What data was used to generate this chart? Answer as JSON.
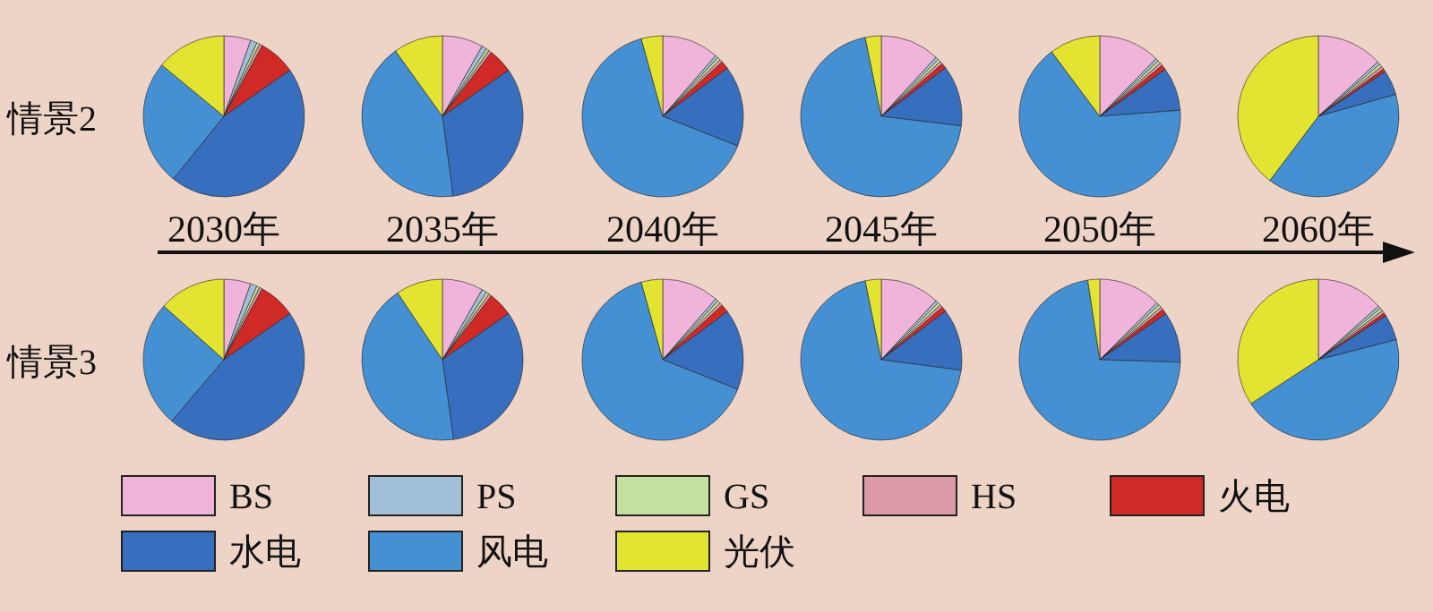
{
  "chart_data": [
    {
      "type": "pie",
      "title": "2030年",
      "ylabel": "情景2",
      "categories": [
        null,
        null,
        null,
        null,
        null,
        null,
        null,
        null
      ],
      "values": [
        5.4,
        1.3,
        0.6,
        0.6,
        7.4,
        45.5,
        25.2,
        14.0
      ],
      "colors": [
        "#f0b4da",
        "#a2bfd8",
        "#c3e09e",
        "#dc9aa6",
        "#d02a26",
        "#386ebe",
        "#4490d2",
        "#e3e332"
      ]
    },
    {
      "type": "pie",
      "title": "2035年",
      "categories": [
        null,
        null,
        null,
        null,
        null,
        null,
        null,
        null
      ],
      "values": [
        8.2,
        1.0,
        0.6,
        0.6,
        4.9,
        32.6,
        42.2,
        9.9
      ],
      "colors": [
        "#f0b4da",
        "#a2bfd8",
        "#c3e09e",
        "#dc9aa6",
        "#d02a26",
        "#386ebe",
        "#4490d2",
        "#e3e332"
      ]
    },
    {
      "type": "pie",
      "title": "2040年",
      "categories": [
        null,
        null,
        null,
        null,
        null,
        null,
        null,
        null
      ],
      "values": [
        11.4,
        0.6,
        0.6,
        0.6,
        1.6,
        16.2,
        64.7,
        4.3
      ],
      "colors": [
        "#f0b4da",
        "#a2bfd8",
        "#c3e09e",
        "#dc9aa6",
        "#d02a26",
        "#386ebe",
        "#4490d2",
        "#e3e332"
      ]
    },
    {
      "type": "pie",
      "title": "2045年",
      "categories": [
        null,
        null,
        null,
        null,
        null,
        null,
        null,
        null
      ],
      "values": [
        11.9,
        0.6,
        0.6,
        0.6,
        1.0,
        12.2,
        69.9,
        3.2
      ],
      "colors": [
        "#f0b4da",
        "#a2bfd8",
        "#c3e09e",
        "#dc9aa6",
        "#d02a26",
        "#386ebe",
        "#4490d2",
        "#e3e332"
      ]
    },
    {
      "type": "pie",
      "title": "2050年",
      "categories": [
        null,
        null,
        null,
        null,
        null,
        null,
        null,
        null
      ],
      "values": [
        12.3,
        0.6,
        0.6,
        0.6,
        1.0,
        8.7,
        66.0,
        10.2
      ],
      "colors": [
        "#f0b4da",
        "#a2bfd8",
        "#c3e09e",
        "#dc9aa6",
        "#d02a26",
        "#386ebe",
        "#4490d2",
        "#e3e332"
      ]
    },
    {
      "type": "pie",
      "title": "2060年",
      "categories": [
        null,
        null,
        null,
        null,
        null,
        null,
        null,
        null
      ],
      "values": [
        13.2,
        0.6,
        0.6,
        0.6,
        0.6,
        5.0,
        39.7,
        39.7
      ],
      "colors": [
        "#f0b4da",
        "#a2bfd8",
        "#c3e09e",
        "#dc9aa6",
        "#d02a26",
        "#386ebe",
        "#4490d2",
        "#e3e332"
      ]
    },
    {
      "type": "pie",
      "ylabel": "情景3",
      "categories": [
        null,
        null,
        null,
        null,
        null,
        null,
        null,
        null
      ],
      "values": [
        5.4,
        1.3,
        0.6,
        0.6,
        7.4,
        45.9,
        25.4,
        13.4
      ],
      "colors": [
        "#f0b4da",
        "#a2bfd8",
        "#c3e09e",
        "#dc9aa6",
        "#d02a26",
        "#386ebe",
        "#4490d2",
        "#e3e332"
      ]
    },
    {
      "type": "pie",
      "categories": [
        null,
        null,
        null,
        null,
        null,
        null,
        null,
        null
      ],
      "values": [
        8.2,
        1.0,
        0.6,
        0.6,
        4.9,
        32.5,
        42.8,
        9.4
      ],
      "colors": [
        "#f0b4da",
        "#a2bfd8",
        "#c3e09e",
        "#dc9aa6",
        "#d02a26",
        "#386ebe",
        "#4490d2",
        "#e3e332"
      ]
    },
    {
      "type": "pie",
      "categories": [
        null,
        null,
        null,
        null,
        null,
        null,
        null,
        null
      ],
      "values": [
        11.4,
        0.6,
        0.6,
        0.6,
        1.6,
        16.2,
        64.7,
        4.3
      ],
      "colors": [
        "#f0b4da",
        "#a2bfd8",
        "#c3e09e",
        "#dc9aa6",
        "#d02a26",
        "#386ebe",
        "#4490d2",
        "#e3e332"
      ]
    },
    {
      "type": "pie",
      "categories": [
        null,
        null,
        null,
        null,
        null,
        null,
        null,
        null
      ],
      "values": [
        11.9,
        0.6,
        0.6,
        0.6,
        1.0,
        12.4,
        69.7,
        3.2
      ],
      "colors": [
        "#f0b4da",
        "#a2bfd8",
        "#c3e09e",
        "#dc9aa6",
        "#d02a26",
        "#386ebe",
        "#4490d2",
        "#e3e332"
      ]
    },
    {
      "type": "pie",
      "categories": [
        null,
        null,
        null,
        null,
        null,
        null,
        null,
        null
      ],
      "values": [
        12.5,
        0.6,
        0.6,
        0.6,
        1.0,
        10.2,
        72.1,
        2.4
      ],
      "colors": [
        "#f0b4da",
        "#a2bfd8",
        "#c3e09e",
        "#dc9aa6",
        "#d02a26",
        "#386ebe",
        "#4490d2",
        "#e3e332"
      ]
    },
    {
      "type": "pie",
      "legend": "bottom",
      "categories": [
        "BS",
        "PS",
        "GS",
        "HS",
        "火电",
        "水电",
        "风电",
        "光伏"
      ],
      "values": [
        13.4,
        0.6,
        0.6,
        0.6,
        0.6,
        5.2,
        44.8,
        34.2
      ],
      "colors": [
        "#f0b4da",
        "#a2bfd8",
        "#c3e09e",
        "#dc9aa6",
        "#d02a26",
        "#386ebe",
        "#4490d2",
        "#e3e332"
      ]
    }
  ]
}
